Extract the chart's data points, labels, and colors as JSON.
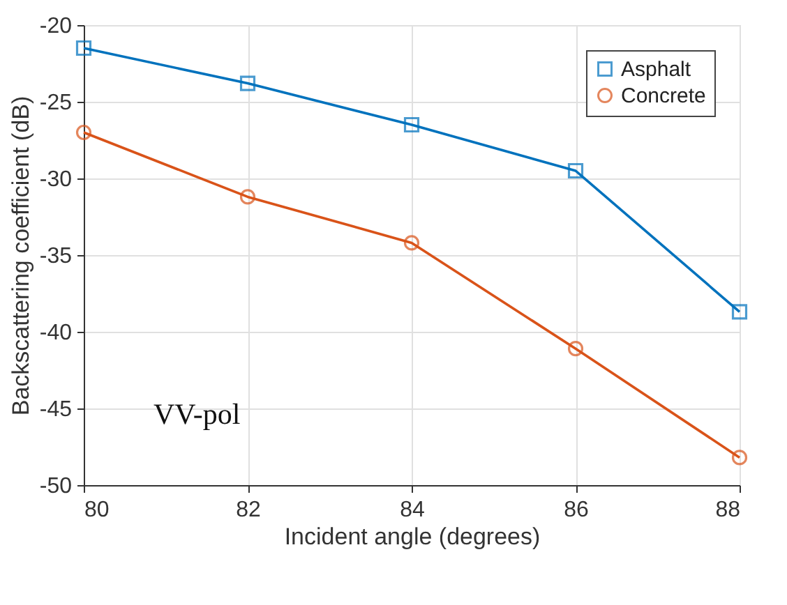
{
  "chart_data": {
    "type": "line",
    "xlabel": "Incident angle (degrees)",
    "ylabel": "Backscattering coefficient (dB)",
    "x": [
      80,
      82,
      84,
      86,
      88
    ],
    "series": [
      {
        "name": "Asphalt",
        "color": "#0072bd",
        "marker": "square",
        "values": [
          -21.5,
          -23.8,
          -26.5,
          -29.5,
          -38.7
        ]
      },
      {
        "name": "Concrete",
        "color": "#d95319",
        "marker": "circle",
        "values": [
          -27.0,
          -31.2,
          -34.2,
          -41.1,
          -48.2
        ]
      }
    ],
    "xlim": [
      80,
      88
    ],
    "xticks": [
      80,
      82,
      84,
      86,
      88
    ],
    "ylim": [
      -50,
      -20
    ],
    "yticks": [
      -50,
      -45,
      -40,
      -35,
      -30,
      -25,
      -20
    ],
    "grid": true,
    "legend": "top right",
    "line_style": "solid",
    "annotations": [
      "VV-pol"
    ]
  }
}
